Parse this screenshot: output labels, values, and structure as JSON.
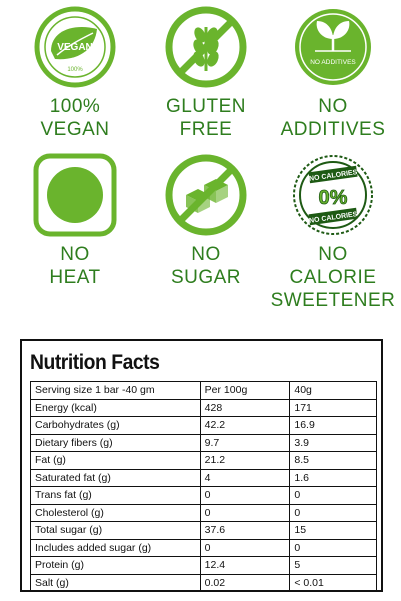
{
  "badges": [
    {
      "id": "vegan",
      "icon": "vegan-leaf-icon",
      "lines": [
        "100%",
        "VEGAN"
      ],
      "seal_text": "VEGAN",
      "seal_sub": "100%"
    },
    {
      "id": "gluten",
      "icon": "wheat-icon",
      "lines": [
        "GLUTEN",
        "FREE"
      ]
    },
    {
      "id": "additives",
      "icon": "sprout-icon",
      "lines": [
        "NO",
        "ADDITIVES"
      ],
      "seal_text": "NO ADDITIVES"
    },
    {
      "id": "heat",
      "icon": "no-heat-icon",
      "lines": [
        "NO",
        "HEAT"
      ]
    },
    {
      "id": "sugar",
      "icon": "sugar-cube-icon",
      "lines": [
        "NO",
        "SUGAR"
      ]
    },
    {
      "id": "calorie",
      "icon": "zero-calorie-icon",
      "lines": [
        "NO",
        "CALORIE",
        "SWEETENER"
      ],
      "seal_top": "NO CALORIES",
      "seal_mid": "0%",
      "seal_bottom": "NO CALORIES"
    }
  ],
  "colors": {
    "green": "#6ab42d",
    "label_green": "#2e7d1e",
    "dark_green": "#1e5a14"
  },
  "nutrition": {
    "title": "Nutrition Facts",
    "header": [
      "Serving size 1 bar -40 gm",
      "Per 100g",
      "40g"
    ],
    "rows": [
      [
        "Energy (kcal)",
        "428",
        "171"
      ],
      [
        "Carbohydrates (g)",
        "42.2",
        "16.9"
      ],
      [
        "Dietary fibers (g)",
        "9.7",
        "3.9"
      ],
      [
        "Fat (g)",
        "21.2",
        "8.5"
      ],
      [
        "Saturated fat (g)",
        "4",
        "1.6"
      ],
      [
        "Trans fat (g)",
        "0",
        "0"
      ],
      [
        "Cholesterol (g)",
        "0",
        "0"
      ],
      [
        "Total sugar (g)",
        "37.6",
        "15"
      ],
      [
        "Includes added sugar (g)",
        "0",
        "0"
      ],
      [
        "Protein (g)",
        "12.4",
        "5"
      ],
      [
        "Salt (g)",
        "0.02",
        "< 0.01"
      ]
    ]
  }
}
